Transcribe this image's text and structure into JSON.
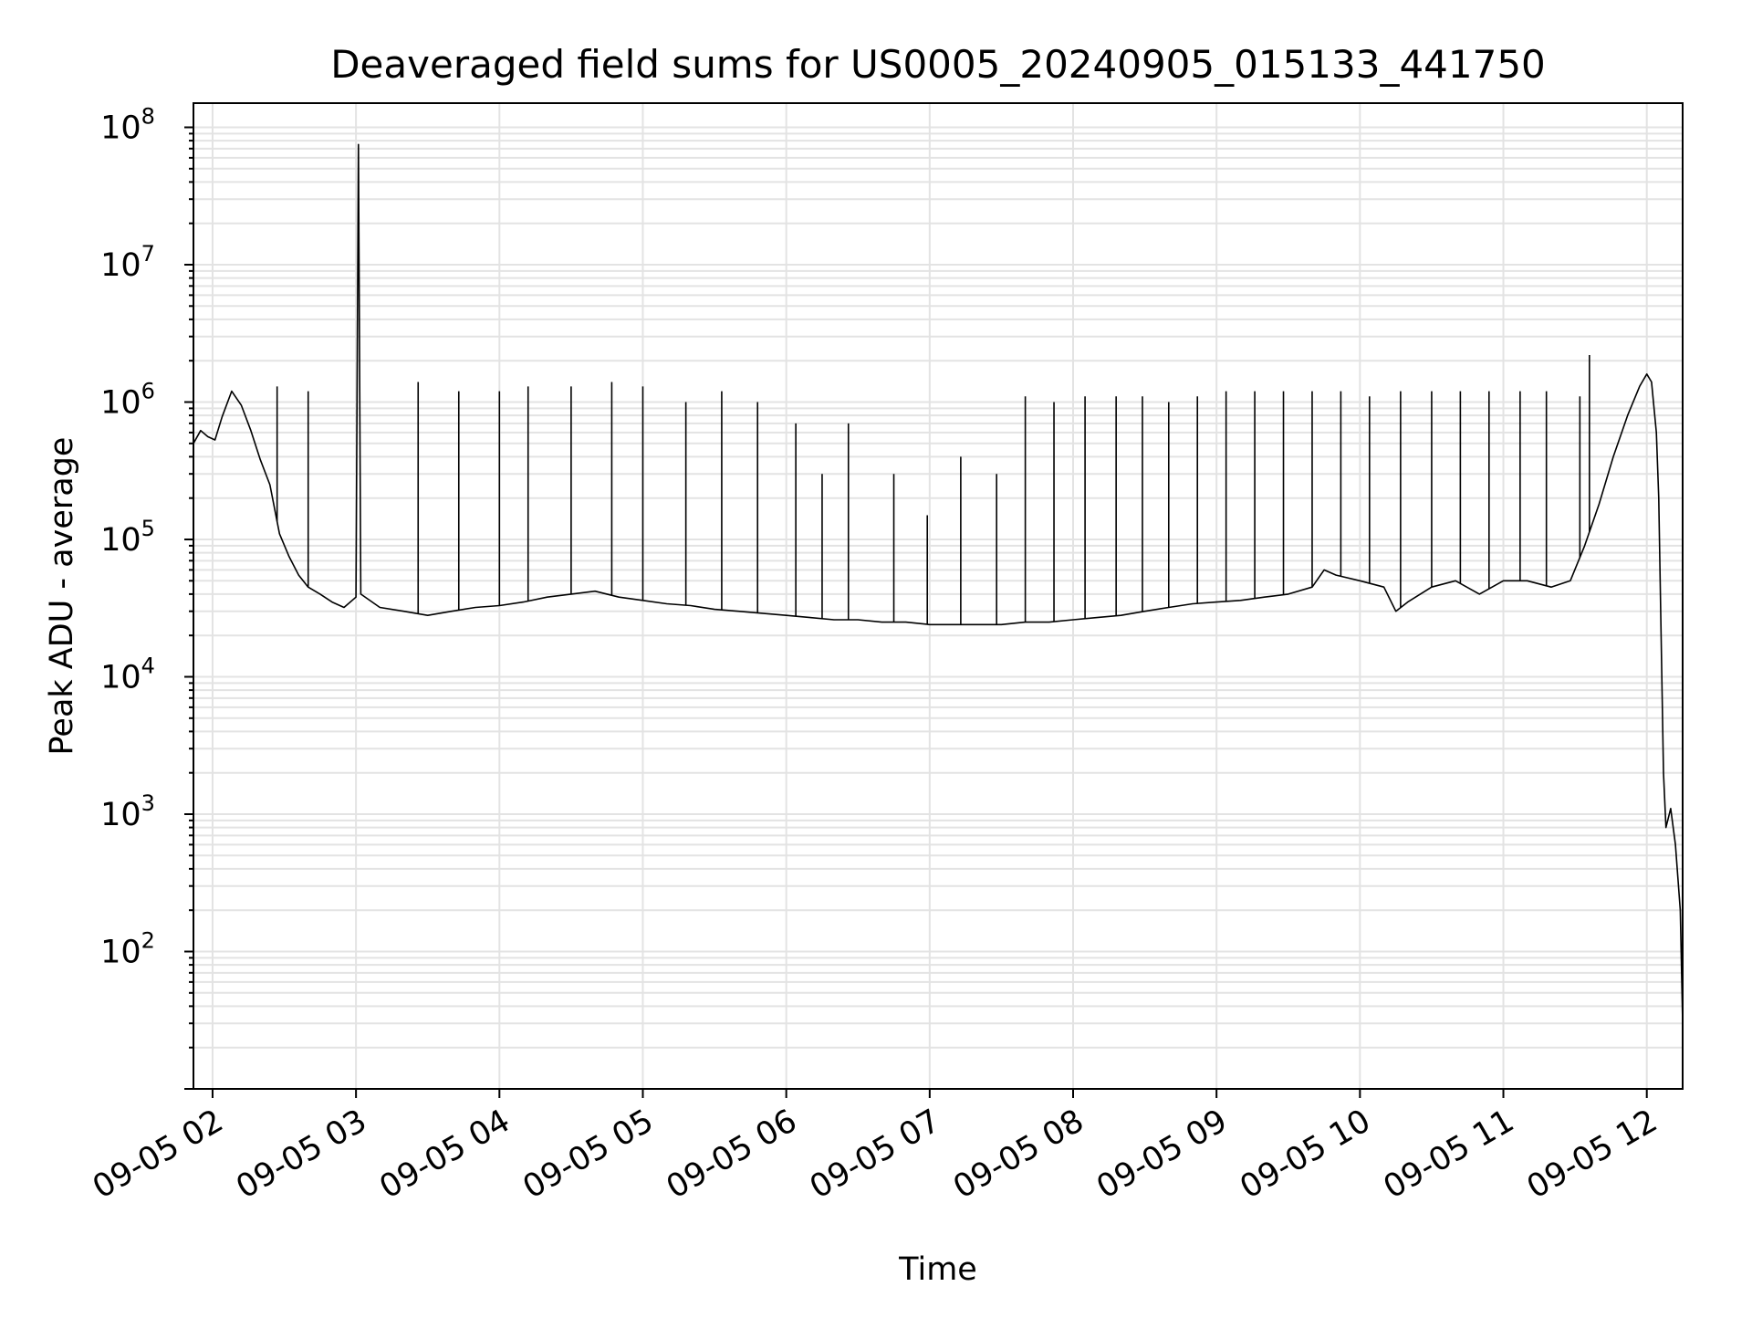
{
  "chart_data": {
    "type": "line",
    "title": "Deaveraged field sums for US0005_20240905_015133_441750",
    "xlabel": "Time",
    "ylabel": "Peak ADU - average",
    "x_scale": "time",
    "y_scale": "log",
    "xlim": [
      "09-05 01:52",
      "09-05 12:15"
    ],
    "ylim": [
      10,
      150000000
    ],
    "grid": true,
    "legend": "none",
    "x_ticks": [
      "09-05 02",
      "09-05 03",
      "09-05 04",
      "09-05 05",
      "09-05 06",
      "09-05 07",
      "09-05 08",
      "09-05 09",
      "09-05 10",
      "09-05 11",
      "09-05 12"
    ],
    "y_ticks": [
      {
        "value": 100,
        "base": "10",
        "exp": "2"
      },
      {
        "value": 1000,
        "base": "10",
        "exp": "3"
      },
      {
        "value": 10000,
        "base": "10",
        "exp": "4"
      },
      {
        "value": 100000,
        "base": "10",
        "exp": "5"
      },
      {
        "value": 1000000,
        "base": "10",
        "exp": "6"
      },
      {
        "value": 10000000,
        "base": "10",
        "exp": "7"
      },
      {
        "value": 100000000,
        "base": "10",
        "exp": "8"
      }
    ],
    "series": [
      {
        "color": "#000000",
        "points": [
          [
            "09-05 01:52",
            500000
          ],
          [
            "09-05 01:55",
            620000
          ],
          [
            "09-05 01:58",
            560000
          ],
          [
            "09-05 02:01",
            530000
          ],
          [
            "09-05 02:04",
            780000
          ],
          [
            "09-05 02:08",
            1200000
          ],
          [
            "09-05 02:12",
            950000
          ],
          [
            "09-05 02:16",
            620000
          ],
          [
            "09-05 02:20",
            380000
          ],
          [
            "09-05 02:24",
            250000
          ],
          [
            "09-05 02:28",
            110000
          ],
          [
            "09-05 02:32",
            75000
          ],
          [
            "09-05 02:36",
            55000
          ],
          [
            "09-05 02:40",
            45000
          ],
          [
            "09-05 02:45",
            40000
          ],
          [
            "09-05 02:50",
            35000
          ],
          [
            "09-05 02:55",
            32000
          ],
          [
            "09-05 03:00",
            38000
          ],
          [
            "09-05 03:01",
            75000000
          ],
          [
            "09-05 03:02",
            40000
          ],
          [
            "09-05 03:10",
            32000
          ],
          [
            "09-05 03:20",
            30000
          ],
          [
            "09-05 03:30",
            28000
          ],
          [
            "09-05 03:40",
            30000
          ],
          [
            "09-05 03:50",
            32000
          ],
          [
            "09-05 04:00",
            33000
          ],
          [
            "09-05 04:10",
            35000
          ],
          [
            "09-05 04:20",
            38000
          ],
          [
            "09-05 04:30",
            40000
          ],
          [
            "09-05 04:40",
            42000
          ],
          [
            "09-05 04:50",
            38000
          ],
          [
            "09-05 05:00",
            36000
          ],
          [
            "09-05 05:10",
            34000
          ],
          [
            "09-05 05:20",
            33000
          ],
          [
            "09-05 05:30",
            31000
          ],
          [
            "09-05 05:40",
            30000
          ],
          [
            "09-05 05:50",
            29000
          ],
          [
            "09-05 06:00",
            28000
          ],
          [
            "09-05 06:10",
            27000
          ],
          [
            "09-05 06:20",
            26000
          ],
          [
            "09-05 06:30",
            26000
          ],
          [
            "09-05 06:40",
            25000
          ],
          [
            "09-05 06:50",
            25000
          ],
          [
            "09-05 07:00",
            24000
          ],
          [
            "09-05 07:10",
            24000
          ],
          [
            "09-05 07:20",
            24000
          ],
          [
            "09-05 07:30",
            24000
          ],
          [
            "09-05 07:40",
            25000
          ],
          [
            "09-05 07:50",
            25000
          ],
          [
            "09-05 08:00",
            26000
          ],
          [
            "09-05 08:10",
            27000
          ],
          [
            "09-05 08:20",
            28000
          ],
          [
            "09-05 08:30",
            30000
          ],
          [
            "09-05 08:40",
            32000
          ],
          [
            "09-05 08:50",
            34000
          ],
          [
            "09-05 09:00",
            35000
          ],
          [
            "09-05 09:10",
            36000
          ],
          [
            "09-05 09:20",
            38000
          ],
          [
            "09-05 09:30",
            40000
          ],
          [
            "09-05 09:40",
            45000
          ],
          [
            "09-05 09:45",
            60000
          ],
          [
            "09-05 09:50",
            55000
          ],
          [
            "09-05 10:00",
            50000
          ],
          [
            "09-05 10:10",
            45000
          ],
          [
            "09-05 10:15",
            30000
          ],
          [
            "09-05 10:20",
            35000
          ],
          [
            "09-05 10:30",
            45000
          ],
          [
            "09-05 10:40",
            50000
          ],
          [
            "09-05 10:50",
            40000
          ],
          [
            "09-05 11:00",
            50000
          ],
          [
            "09-05 11:10",
            50000
          ],
          [
            "09-05 11:20",
            45000
          ],
          [
            "09-05 11:28",
            50000
          ],
          [
            "09-05 11:34",
            90000
          ],
          [
            "09-05 11:40",
            180000
          ],
          [
            "09-05 11:46",
            400000
          ],
          [
            "09-05 11:52",
            800000
          ],
          [
            "09-05 11:57",
            1300000
          ],
          [
            "09-05 12:00",
            1600000
          ],
          [
            "09-05 12:02",
            1400000
          ],
          [
            "09-05 12:04",
            600000
          ],
          [
            "09-05 12:05",
            200000
          ],
          [
            "09-05 12:06",
            20000
          ],
          [
            "09-05 12:07",
            2000
          ],
          [
            "09-05 12:08",
            800
          ],
          [
            "09-05 12:10",
            1100
          ],
          [
            "09-05 12:12",
            600
          ],
          [
            "09-05 12:14",
            200
          ],
          [
            "09-05 12:15",
            30
          ]
        ],
        "spikes": [
          [
            "09-05 02:27",
            1300000
          ],
          [
            "09-05 02:40",
            1200000
          ],
          [
            "09-05 03:26",
            1400000
          ],
          [
            "09-05 03:43",
            1200000
          ],
          [
            "09-05 04:00",
            1200000
          ],
          [
            "09-05 04:12",
            1300000
          ],
          [
            "09-05 04:30",
            1300000
          ],
          [
            "09-05 04:47",
            1400000
          ],
          [
            "09-05 05:00",
            1300000
          ],
          [
            "09-05 05:18",
            1000000
          ],
          [
            "09-05 05:33",
            1200000
          ],
          [
            "09-05 05:48",
            1000000
          ],
          [
            "09-05 06:04",
            700000
          ],
          [
            "09-05 06:15",
            300000
          ],
          [
            "09-05 06:26",
            700000
          ],
          [
            "09-05 06:45",
            300000
          ],
          [
            "09-05 06:59",
            150000
          ],
          [
            "09-05 07:13",
            400000
          ],
          [
            "09-05 07:28",
            300000
          ],
          [
            "09-05 07:40",
            1100000
          ],
          [
            "09-05 07:52",
            1000000
          ],
          [
            "09-05 08:05",
            1100000
          ],
          [
            "09-05 08:18",
            1100000
          ],
          [
            "09-05 08:29",
            1100000
          ],
          [
            "09-05 08:40",
            1000000
          ],
          [
            "09-05 08:52",
            1100000
          ],
          [
            "09-05 09:04",
            1200000
          ],
          [
            "09-05 09:16",
            1200000
          ],
          [
            "09-05 09:28",
            1200000
          ],
          [
            "09-05 09:40",
            1200000
          ],
          [
            "09-05 09:52",
            1200000
          ],
          [
            "09-05 10:04",
            1100000
          ],
          [
            "09-05 10:17",
            1200000
          ],
          [
            "09-05 10:30",
            1200000
          ],
          [
            "09-05 10:42",
            1200000
          ],
          [
            "09-05 10:54",
            1200000
          ],
          [
            "09-05 11:07",
            1200000
          ],
          [
            "09-05 11:18",
            1200000
          ],
          [
            "09-05 11:32",
            1100000
          ],
          [
            "09-05 11:36",
            2200000
          ]
        ]
      }
    ]
  }
}
